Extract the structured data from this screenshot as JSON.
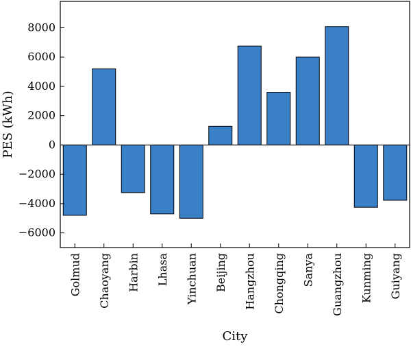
{
  "chart_data": {
    "type": "bar",
    "title": "",
    "xlabel": "City",
    "ylabel": "PES (kWh)",
    "categories": [
      "Golmud",
      "Chaoyang",
      "Harbin",
      "Lhasa",
      "Yinchuan",
      "Beijing",
      "Hangzhou",
      "Chongqing",
      "Sanya",
      "Guangzhou",
      "Kunming",
      "Guiyang"
    ],
    "values": [
      -4800,
      5200,
      -3250,
      -4700,
      -5000,
      1270,
      6750,
      3600,
      6000,
      8080,
      -4250,
      -3770
    ],
    "ylim": [
      -7000,
      9800
    ],
    "yticks": [
      -6000,
      -4000,
      -2000,
      0,
      2000,
      4000,
      6000,
      8000
    ],
    "ytick_labels": [
      "−6000",
      "−4000",
      "−2000",
      "0",
      "2000",
      "4000",
      "6000",
      "8000"
    ],
    "grid": false,
    "legend": "none",
    "bar_color": "#3a80c6",
    "bar_edge_color": "#000000"
  }
}
